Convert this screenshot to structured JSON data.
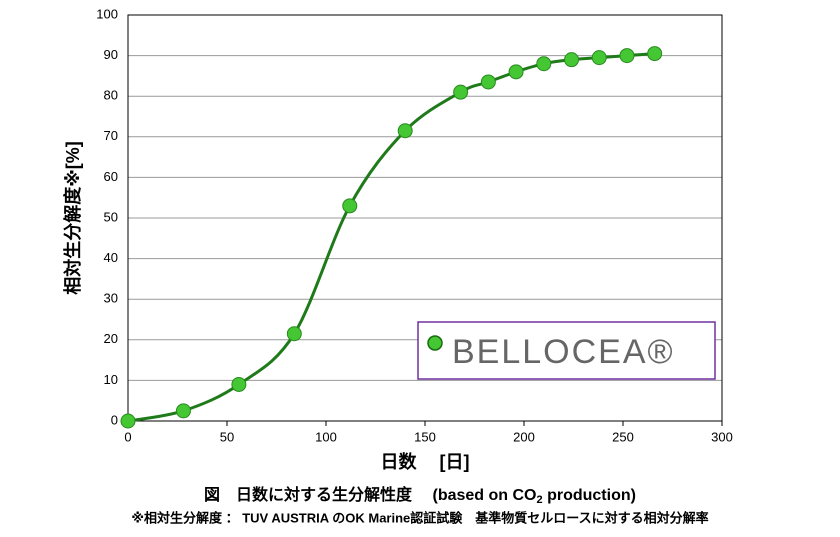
{
  "chart_data": {
    "type": "line",
    "title": [
      "図　日数に対する生分解性度　 (based on CO",
      "2",
      " production)"
    ],
    "footnote": "※相対生分解度 ： TUV AUSTRIA のOK Marine認証試験　基準物質セルロースに対する相対分解率",
    "x_label": "日数　 [日]",
    "y_label": "相対生分解度※[%]",
    "x": [
      0,
      28,
      56,
      84,
      112,
      140,
      168,
      182,
      196,
      210,
      224,
      238,
      252,
      266
    ],
    "series": [
      {
        "name": "BELLOCEA®",
        "color": "#44c733",
        "line_color": "#1f7a1a",
        "values": [
          0,
          2.5,
          9,
          21.5,
          53,
          71.5,
          81,
          83.5,
          86,
          88,
          89,
          89.5,
          90,
          90.5
        ]
      }
    ],
    "xlim": [
      0,
      300
    ],
    "xticks": [
      0,
      50,
      100,
      150,
      200,
      250,
      300
    ],
    "ylim": [
      0,
      100
    ],
    "yticks": [
      0,
      10,
      20,
      30,
      40,
      50,
      60,
      70,
      80,
      90,
      100
    ],
    "grid": true,
    "legend": "lower right"
  }
}
